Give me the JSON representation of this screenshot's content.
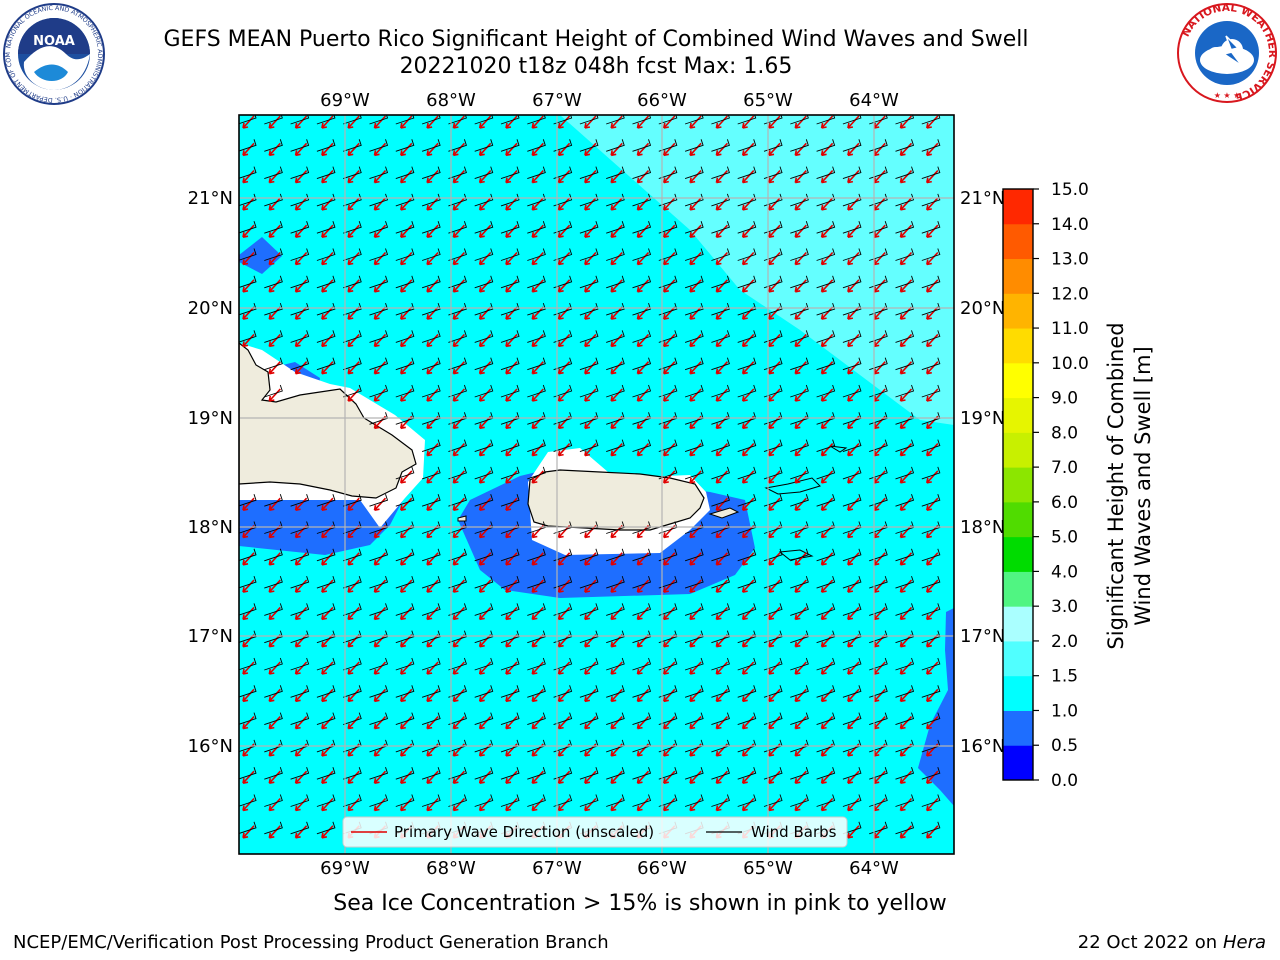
{
  "header": {
    "title_line1": "GEFS MEAN Puerto Rico Significant Height of Combined Wind Waves and Swell",
    "title_line2": "20221020 t18z 048h fcst   Max: 1.65"
  },
  "logos": {
    "left": "NOAA",
    "left_ring_text": "NATIONAL OCEANIC AND ATMOSPHERIC ADMINISTRATION · U.S. DEPARTMENT OF COMMERCE",
    "right_ring_text": "NATIONAL WEATHER SERVICE"
  },
  "map": {
    "lon_ticks": [
      "69°W",
      "68°W",
      "67°W",
      "66°W",
      "65°W",
      "64°W"
    ],
    "lat_ticks": [
      "21°N",
      "20°N",
      "19°N",
      "18°N",
      "17°N",
      "16°N"
    ],
    "legend": {
      "wave_label": "Primary Wave Direction (unscaled)",
      "barb_label": "Wind Barbs"
    }
  },
  "colorbar": {
    "label_line1": "Significant Height of Combined",
    "label_line2": "Wind Waves and Swell [m]",
    "ticks": [
      "0.0",
      "0.5",
      "1.0",
      "1.5",
      "2.0",
      "3.0",
      "4.0",
      "5.0",
      "6.0",
      "7.0",
      "8.0",
      "9.0",
      "10.0",
      "11.0",
      "12.0",
      "13.0",
      "14.0",
      "15.0"
    ],
    "colors": [
      "#0000ff",
      "#1e6eff",
      "#00ffff",
      "#50ffff",
      "#aaffff",
      "#50f582",
      "#00dc00",
      "#50dc00",
      "#8ce600",
      "#c8f000",
      "#e6f500",
      "#ffff00",
      "#ffdc00",
      "#ffb400",
      "#ff8c00",
      "#ff5a00",
      "#ff2800",
      "#ff0000"
    ]
  },
  "caption": "Sea Ice Concentration > 15% is shown in pink to yellow",
  "footer": {
    "left": "NCEP/EMC/Verification Post Processing Product Generation Branch",
    "right_prefix": "22 Oct 2022 on ",
    "right_host": "Hera"
  }
}
